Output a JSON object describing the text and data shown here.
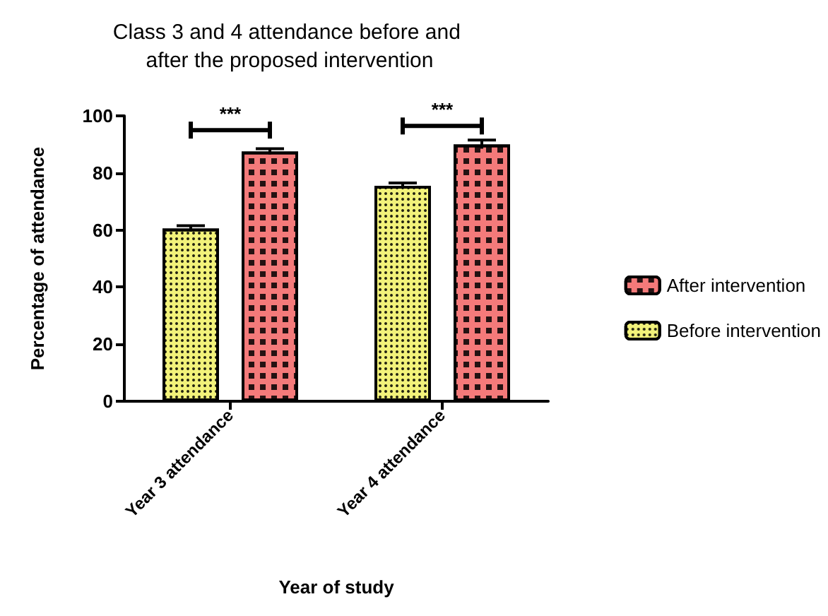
{
  "chart_data": {
    "type": "bar",
    "title": "Class 3 and 4 attendance before and after the proposed intervention",
    "xlabel": "Year of study",
    "ylabel": "Percentage of attendance",
    "categories": [
      "Year 3 attendance",
      "Year 4 attendance"
    ],
    "series": [
      {
        "name": "Before intervention",
        "color": "#f2f27a",
        "values": [
          60.5,
          75.5
        ],
        "errors": [
          1,
          1
        ]
      },
      {
        "name": "After intervention",
        "color": "#f47a7a",
        "values": [
          87.5,
          90
        ],
        "errors": [
          1,
          1.5
        ]
      }
    ],
    "annotations": [
      "***",
      "***"
    ],
    "ylim": [
      0,
      100
    ],
    "yticks": [
      0,
      20,
      40,
      60,
      80,
      100
    ],
    "grid": false,
    "legend": "right"
  }
}
